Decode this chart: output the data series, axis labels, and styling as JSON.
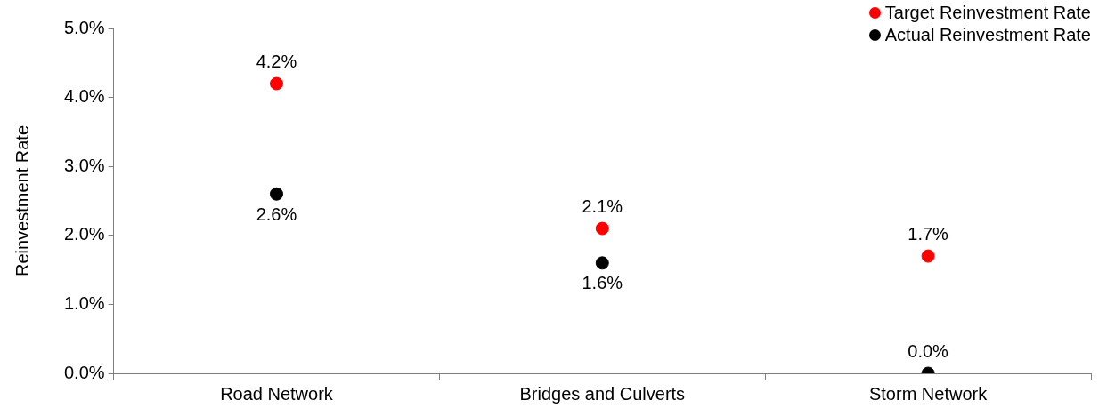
{
  "chart_data": {
    "type": "scatter",
    "ylabel": "Reinvestment Rate",
    "categories": [
      "Road Network",
      "Bridges and Culverts",
      "Storm Network"
    ],
    "series": [
      {
        "name": "Target Reinvestment Rate",
        "color": "#ff0000",
        "values": [
          4.2,
          2.1,
          1.7
        ],
        "value_labels": [
          "4.2%",
          "2.1%",
          "1.7%"
        ]
      },
      {
        "name": "Actual Reinvestment Rate",
        "color": "#000000",
        "values": [
          2.6,
          1.6,
          0.0
        ],
        "value_labels": [
          "2.6%",
          "1.6%",
          "0.0%"
        ]
      }
    ],
    "ylim": [
      0,
      5
    ],
    "yticks": [
      {
        "value": 0,
        "label": "0.0%"
      },
      {
        "value": 1,
        "label": "1.0%"
      },
      {
        "value": 2,
        "label": "2.0%"
      },
      {
        "value": 3,
        "label": "3.0%"
      },
      {
        "value": 4,
        "label": "4.0%"
      },
      {
        "value": 5,
        "label": "5.0%"
      }
    ],
    "grid": false,
    "legend": "top right",
    "marker": "circle"
  }
}
